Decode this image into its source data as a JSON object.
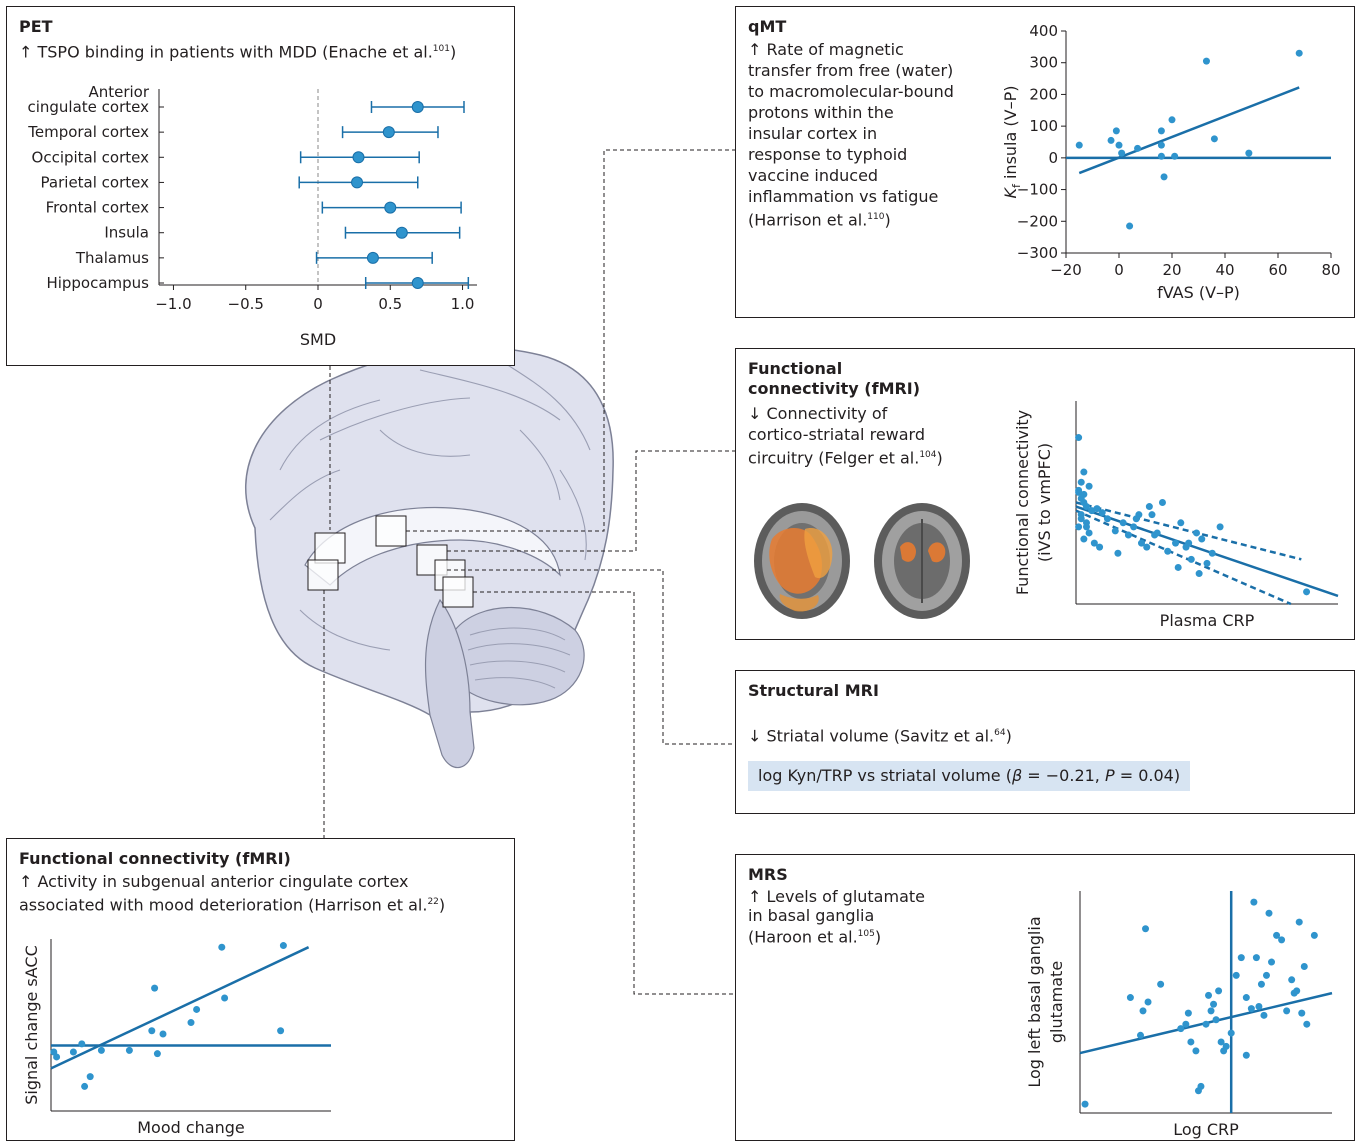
{
  "pet": {
    "title": "PET",
    "desc": "↑ TSPO binding in patients with MDD (Enache et al.",
    "ref": "101",
    "desc_end": ")",
    "x_label": "SMD",
    "x_ticks": [
      "−1.0",
      "−0.5",
      "0",
      "0.5",
      "1.0"
    ],
    "regions": [
      {
        "label": "Anterior cingulate cortex",
        "label_lines": [
          "Anterior",
          "cingulate cortex"
        ],
        "smd": 0.69,
        "lo": 0.37,
        "hi": 1.01
      },
      {
        "label": "Temporal cortex",
        "smd": 0.49,
        "lo": 0.17,
        "hi": 0.83
      },
      {
        "label": "Occipital cortex",
        "smd": 0.28,
        "lo": -0.12,
        "hi": 0.7
      },
      {
        "label": "Parietal cortex",
        "smd": 0.27,
        "lo": -0.13,
        "hi": 0.69
      },
      {
        "label": "Frontal cortex",
        "smd": 0.5,
        "lo": 0.03,
        "hi": 0.99
      },
      {
        "label": "Insula",
        "smd": 0.58,
        "lo": 0.19,
        "hi": 0.98
      },
      {
        "label": "Thalamus",
        "smd": 0.38,
        "lo": -0.01,
        "hi": 0.79
      },
      {
        "label": "Hippocampus",
        "smd": 0.69,
        "lo": 0.33,
        "hi": 1.04
      }
    ]
  },
  "qmt": {
    "title": "qMT",
    "desc_lines": [
      "↑ Rate of magnetic",
      "transfer from free (water)",
      "to macromolecular-bound",
      "protons within the",
      "insular cortex in",
      "response to typhoid",
      "vaccine induced",
      "inflammation vs fatigue"
    ],
    "desc_last": "(Harrison et al.",
    "ref": "110",
    "desc_end": ")",
    "y_label_k": "K",
    "y_label_sub": "f",
    "y_label_rest": " insula (V–P)",
    "x_label": "fVAS (V–P)",
    "y_ticks": [
      "400",
      "300",
      "200",
      "100",
      "0",
      "−100",
      "−200",
      "−300"
    ],
    "x_ticks": [
      "−20",
      "0",
      "20",
      "40",
      "60",
      "80"
    ]
  },
  "fmri_reward": {
    "title_lines": [
      "Functional",
      "connectivity (fMRI)"
    ],
    "desc_lines": [
      "↓ Connectivity of",
      "cortico-striatal reward"
    ],
    "desc_last": "circuitry (Felger et al.",
    "ref": "104",
    "desc_end": ")",
    "y_label_lines": [
      "Functional connectivity",
      "(iVS to vmPFC)"
    ],
    "x_label": "Plasma CRP"
  },
  "smri": {
    "title": "Structural MRI",
    "desc": "↓ Striatal volume (Savitz et al.",
    "ref": "64",
    "desc_end": ")",
    "stat_pre": "log Kyn/TRP vs striatal volume (",
    "stat_beta": "β",
    "stat_mid": " = −0.21, ",
    "stat_p": "P",
    "stat_end": " = 0.04)"
  },
  "mrs": {
    "title": "MRS",
    "desc_lines": [
      "↑ Levels of glutamate",
      "in basal ganglia"
    ],
    "desc_last": "(Haroon et al.",
    "ref": "105",
    "desc_end": ")",
    "y_label_lines": [
      "Log left basal ganglia",
      "glutamate"
    ],
    "x_label": "Log CRP"
  },
  "fmri_sacc": {
    "title": "Functional connectivity (fMRI)",
    "desc_lines": [
      "↑ Activity in subgenual anterior cingulate cortex"
    ],
    "desc_last": "associated with mood deterioration (Harrison et al.",
    "ref": "22",
    "desc_end": ")",
    "y_label": "Signal change sACC",
    "x_label": "Mood change"
  },
  "chart_data": [
    {
      "type": "scatter",
      "panel": "pet",
      "xlabel": "SMD",
      "xlim": [
        -1.1,
        1.1
      ],
      "categories": [
        "Anterior cingulate cortex",
        "Temporal cortex",
        "Occipital cortex",
        "Parietal cortex",
        "Frontal cortex",
        "Insula",
        "Thalamus",
        "Hippocampus"
      ],
      "values": [
        0.69,
        0.49,
        0.28,
        0.27,
        0.5,
        0.58,
        0.38,
        0.69
      ],
      "ci_low": [
        0.37,
        0.17,
        -0.12,
        -0.13,
        0.03,
        0.19,
        -0.01,
        0.33
      ],
      "ci_high": [
        1.01,
        0.83,
        0.7,
        0.69,
        0.99,
        0.98,
        0.79,
        1.04
      ]
    },
    {
      "type": "scatter",
      "panel": "qmt",
      "xlabel": "fVAS (V–P)",
      "ylabel": "Kf insula (V–P)",
      "xlim": [
        -20,
        80
      ],
      "ylim": [
        -300,
        400
      ],
      "x": [
        -15,
        -3,
        -1,
        0,
        1,
        7,
        16,
        16,
        16,
        17,
        20,
        21,
        33,
        36,
        49,
        68,
        4
      ],
      "y": [
        40,
        55,
        85,
        40,
        15,
        30,
        5,
        85,
        40,
        -60,
        120,
        5,
        305,
        60,
        15,
        330,
        -215
      ],
      "fit": [
        [
          -15,
          -48
        ],
        [
          68,
          222
        ]
      ]
    },
    {
      "type": "scatter",
      "panel": "fmri_reward",
      "xlabel": "Plasma CRP",
      "ylabel": "Functional connectivity (iVS to vmPFC)",
      "xlim": [
        0,
        100
      ],
      "ylim": [
        0,
        100
      ],
      "x": [
        1,
        3,
        1,
        2,
        4,
        1,
        2,
        3,
        5,
        2,
        4,
        1,
        3,
        6,
        2,
        5,
        3,
        8,
        10,
        4,
        7,
        12,
        15,
        9,
        18,
        20,
        22,
        25,
        16,
        24,
        27,
        30,
        23,
        28,
        31,
        35,
        38,
        40,
        42,
        44,
        46,
        48,
        50,
        52,
        39,
        43,
        47,
        55,
        88,
        29,
        33
      ],
      "y": [
        82,
        65,
        56,
        52,
        48,
        55,
        44,
        50,
        58,
        60,
        40,
        38,
        54,
        46,
        42,
        35,
        32,
        47,
        45,
        38,
        30,
        42,
        36,
        28,
        40,
        34,
        38,
        30,
        25,
        44,
        28,
        34,
        42,
        48,
        35,
        26,
        30,
        40,
        28,
        22,
        35,
        32,
        20,
        25,
        18,
        30,
        15,
        38,
        6,
        44,
        50
      ],
      "fit": [
        [
          0,
          48
        ],
        [
          100,
          4
        ]
      ],
      "ci_upper": [
        [
          0,
          50
        ],
        [
          86,
          22
        ]
      ],
      "ci_lower": [
        [
          0,
          46
        ],
        [
          82,
          0
        ]
      ]
    },
    {
      "type": "scatter",
      "panel": "mrs",
      "xlabel": "Log CRP",
      "ylabel": "Log left basal ganglia glutamate",
      "xlim": [
        0,
        100
      ],
      "ylim": [
        0,
        100
      ],
      "vline": 60,
      "x": [
        2,
        24,
        25,
        27,
        20,
        32,
        26,
        43,
        40,
        44,
        42,
        52,
        51,
        55,
        54,
        53,
        46,
        47,
        48,
        50,
        58,
        57,
        56,
        60,
        62,
        64,
        66,
        68,
        70,
        72,
        74,
        76,
        75,
        78,
        80,
        82,
        84,
        86,
        88,
        90,
        71,
        73,
        85,
        87,
        89,
        93,
        69,
        66
      ],
      "y": [
        4,
        35,
        46,
        50,
        52,
        58,
        83,
        45,
        38,
        32,
        40,
        46,
        53,
        55,
        42,
        49,
        28,
        10,
        12,
        40,
        30,
        28,
        32,
        36,
        62,
        70,
        52,
        47,
        70,
        58,
        62,
        68,
        90,
        80,
        78,
        46,
        60,
        55,
        45,
        40,
        48,
        44,
        54,
        86,
        66,
        80,
        95,
        26
      ]
    },
    {
      "type": "scatter",
      "panel": "fmri_sacc",
      "xlabel": "Mood change",
      "ylabel": "Signal change sACC",
      "xlim": [
        0,
        100
      ],
      "ylim": [
        0,
        100
      ],
      "hline": 40,
      "x": [
        1,
        2,
        8,
        11,
        12,
        14,
        18,
        28,
        36,
        37,
        38,
        40,
        50,
        52,
        61,
        62,
        82,
        83
      ],
      "y": [
        36,
        33,
        36,
        41,
        15,
        21,
        37,
        37,
        49,
        75,
        35,
        47,
        54,
        62,
        100,
        69,
        49,
        101
      ],
      "fit": [
        [
          0,
          26
        ],
        [
          92,
          100
        ]
      ]
    }
  ]
}
